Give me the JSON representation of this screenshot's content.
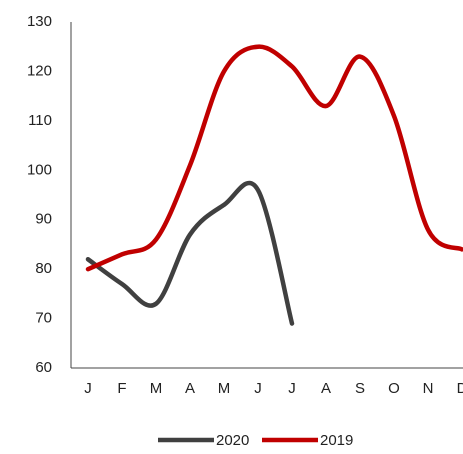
{
  "chart_data": {
    "type": "line",
    "categories": [
      "J",
      "F",
      "M",
      "A",
      "M",
      "J",
      "J",
      "A",
      "S",
      "O",
      "N",
      "D"
    ],
    "series": [
      {
        "name": "2020",
        "color": "#404040",
        "values": [
          82,
          77,
          73,
          87,
          93,
          96,
          69,
          null,
          null,
          null,
          null,
          null
        ]
      },
      {
        "name": "2019",
        "color": "#c00000",
        "values": [
          80,
          83,
          86,
          101,
          120,
          125,
          121,
          113,
          123,
          111,
          88,
          84
        ]
      }
    ],
    "ylim": [
      60,
      130
    ],
    "yticks": [
      60,
      70,
      80,
      90,
      100,
      110,
      120,
      130
    ],
    "smooth": true
  }
}
